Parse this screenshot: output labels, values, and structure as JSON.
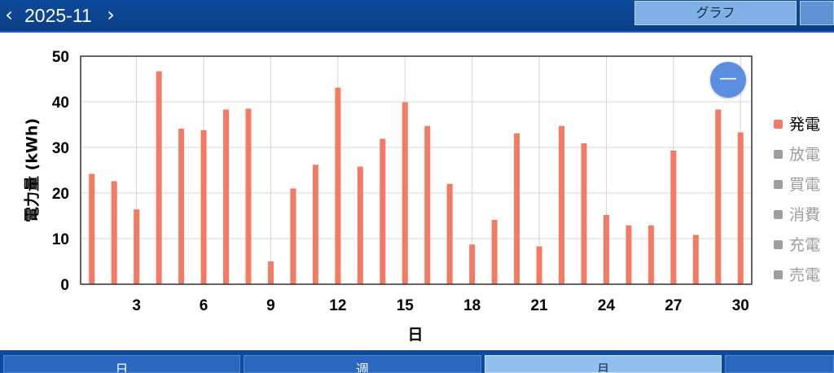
{
  "header": {
    "prev_icon": "chevron-left-icon",
    "next_icon": "chevron-right-icon",
    "prev_glyph": "‹",
    "next_glyph": "›",
    "period": "2025-11",
    "graph_button_label": "グラフ"
  },
  "collapse_button_glyph": "—",
  "legend": [
    {
      "label": "発電",
      "color": "#f47a64",
      "active": true
    },
    {
      "label": "放電",
      "color": "#9e9e9e",
      "active": false
    },
    {
      "label": "買電",
      "color": "#9e9e9e",
      "active": false
    },
    {
      "label": "消費",
      "color": "#9e9e9e",
      "active": false
    },
    {
      "label": "充電",
      "color": "#9e9e9e",
      "active": false
    },
    {
      "label": "売電",
      "color": "#9e9e9e",
      "active": false
    }
  ],
  "colors": {
    "bar": "#f47a64",
    "active_text": "#000000",
    "inactive_text": "#9e9e9e",
    "header_bg": "#0d4a9c"
  },
  "bottom_tabs": [
    {
      "label": "日",
      "active": false
    },
    {
      "label": "週",
      "active": false
    },
    {
      "label": "月",
      "active": true
    },
    {
      "label": "",
      "active": false
    }
  ],
  "chart_data": {
    "type": "bar",
    "ylabel": "電力量 (kWh)",
    "xlabel": "日",
    "ylim": [
      0,
      50
    ],
    "yticks": [
      0,
      10,
      20,
      30,
      40,
      50
    ],
    "xlim": [
      0.5,
      30.5
    ],
    "xticks": [
      3,
      6,
      9,
      12,
      15,
      18,
      21,
      24,
      27,
      30
    ],
    "grid": true,
    "legend_position": "right",
    "series": [
      {
        "name": "発電",
        "x": [
          1,
          2,
          3,
          4,
          5,
          6,
          7,
          8,
          9,
          10,
          11,
          12,
          13,
          14,
          15,
          16,
          17,
          18,
          19,
          20,
          21,
          22,
          23,
          24,
          25,
          26,
          27,
          28,
          29,
          30
        ],
        "values": [
          24.2,
          22.6,
          16.4,
          46.7,
          34.1,
          33.8,
          38.3,
          38.5,
          5.0,
          21.0,
          26.2,
          43.1,
          25.8,
          31.9,
          39.9,
          34.7,
          22.0,
          8.7,
          14.1,
          33.1,
          8.3,
          34.7,
          30.9,
          15.2,
          12.9,
          12.9,
          29.3,
          10.8,
          38.3,
          33.3
        ]
      }
    ]
  }
}
